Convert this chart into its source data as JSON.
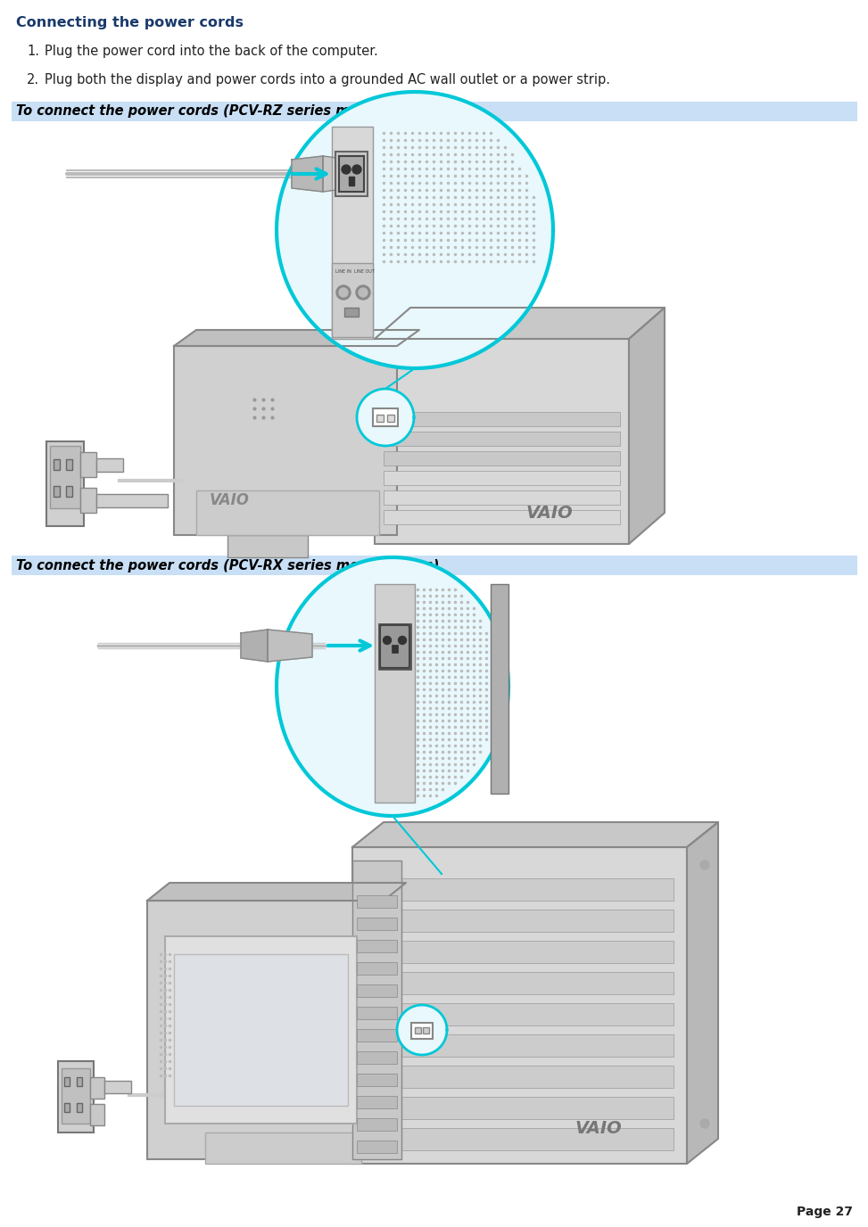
{
  "title": "Connecting the power cords",
  "title_color": "#1a3a6b",
  "title_fontsize": 11.5,
  "body_text_color": "#222222",
  "body_fontsize": 10.5,
  "step1": "Plug the power cord into the back of the computer.",
  "step2": "Plug both the display and power cords into a grounded AC wall outlet or a power strip.",
  "header1_text": "To connect the power cords (PCV-RZ series model shown)",
  "header2_text": "To connect the power cords (PCV-RX series model shown)",
  "header_bg_color": "#c8dff5",
  "header_text_color": "#000000",
  "header_fontsize": 10.5,
  "page_label": "Page 27",
  "page_label_fontsize": 10,
  "background_color": "#ffffff",
  "fig_width": 9.54,
  "fig_height": 13.51,
  "cyan_color": "#00c8d8",
  "line_color": "#888888",
  "gray_light": "#e0e0e0",
  "gray_mid": "#c0c0c0",
  "gray_dark": "#888888"
}
